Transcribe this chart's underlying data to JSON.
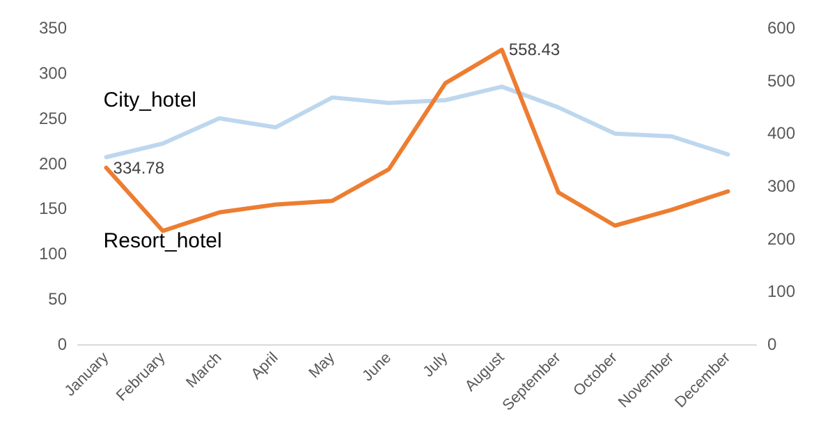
{
  "chart_data": {
    "type": "line",
    "categories": [
      "January",
      "February",
      "March",
      "April",
      "May",
      "June",
      "July",
      "August",
      "September",
      "October",
      "November",
      "December"
    ],
    "series": [
      {
        "name": "City_hotel",
        "color": "#bdd7ee",
        "values": [
          207,
          222,
          250,
          240,
          273,
          267,
          270,
          285,
          262,
          233,
          230,
          210
        ]
      },
      {
        "name": "Resort_hotel",
        "color": "#ed7d31",
        "axis": "y2",
        "values": [
          334.78,
          215,
          250,
          265,
          272,
          332,
          495,
          558.43,
          288,
          225,
          255,
          290
        ],
        "value_labels": [
          "334.78",
          null,
          null,
          null,
          null,
          null,
          null,
          "558.43",
          null,
          null,
          null,
          null
        ]
      }
    ],
    "ylim": [
      0,
      350
    ],
    "yticks": [
      0,
      50,
      100,
      150,
      200,
      250,
      300,
      350
    ],
    "y2lim": [
      0,
      600
    ],
    "y2ticks": [
      0,
      100,
      200,
      300,
      400,
      500,
      600
    ],
    "grid": false,
    "marker": "none",
    "line_style": "solid"
  }
}
